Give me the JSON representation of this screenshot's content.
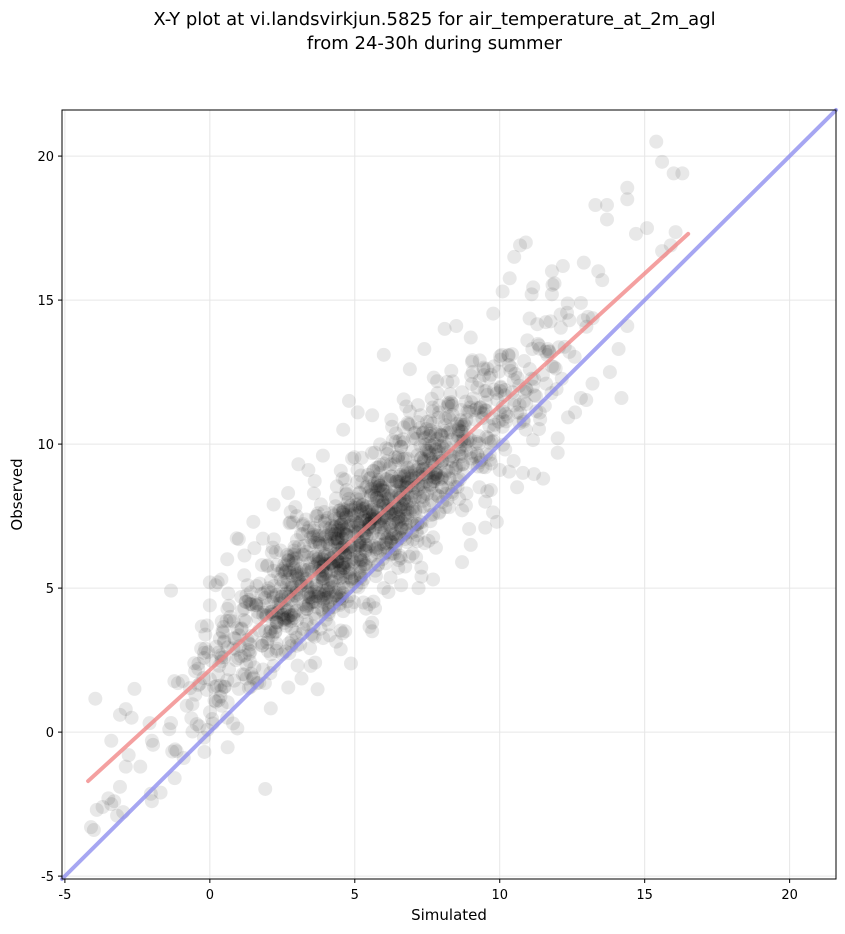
{
  "chart_data": {
    "type": "scatter",
    "title_line1": "X-Y plot at vi.landsvirkjun.5825 for air_temperature_at_2m_agl",
    "title_line2": "from 24-30h during summer",
    "xlabel": "Simulated",
    "ylabel": "Observed",
    "xlim": [
      -5.1,
      21.6
    ],
    "ylim": [
      -5.1,
      21.6
    ],
    "xticks": [
      -5,
      0,
      5,
      10,
      15,
      20
    ],
    "yticks": [
      -5,
      0,
      5,
      10,
      15,
      20
    ],
    "grid": true,
    "point_color": "#000000",
    "point_alpha": 0.09,
    "point_count": 1500,
    "fit_line": {
      "color": "#f08080",
      "x": [
        -4.2,
        16.5
      ],
      "y": [
        -1.7,
        17.3
      ]
    },
    "identity_line": {
      "color": "#8888ee",
      "x": [
        -5.1,
        21.6
      ],
      "y": [
        -5.1,
        21.6
      ]
    },
    "points": [
      [
        -4.1,
        -3.3
      ],
      [
        -4.0,
        -3.4
      ],
      [
        -3.9,
        -2.7
      ],
      [
        -3.7,
        -2.6
      ],
      [
        -3.5,
        -2.3
      ],
      [
        -3.4,
        -2.5
      ],
      [
        -3.3,
        -2.4
      ],
      [
        -3.2,
        -2.9
      ],
      [
        -3.1,
        -1.9
      ],
      [
        -3.4,
        -0.3
      ],
      [
        -3.1,
        0.6
      ],
      [
        -2.9,
        0.8
      ],
      [
        -2.7,
        0.5
      ],
      [
        -2.6,
        1.5
      ],
      [
        -2.8,
        -0.8
      ],
      [
        -2.9,
        -1.2
      ],
      [
        -2.4,
        -1.2
      ],
      [
        -2.0,
        -2.4
      ],
      [
        -1.7,
        -2.1
      ],
      [
        -2.0,
        -0.3
      ],
      [
        -1.4,
        0.1
      ],
      [
        -1.2,
        -0.6
      ],
      [
        -0.9,
        -0.9
      ],
      [
        -1.1,
        1.7
      ],
      [
        -0.5,
        1.3
      ],
      [
        -0.4,
        2.2
      ],
      [
        -0.3,
        2.9
      ],
      [
        -0.1,
        3.7
      ],
      [
        0.0,
        5.2
      ],
      [
        0.2,
        5.1
      ],
      [
        0.0,
        4.4
      ],
      [
        0.1,
        0.3
      ],
      [
        0.3,
        1.1
      ],
      [
        0.6,
        0.5
      ],
      [
        0.8,
        0.3
      ],
      [
        16.0,
        19.4
      ],
      [
        15.4,
        20.5
      ],
      [
        15.6,
        19.8
      ],
      [
        16.3,
        19.4
      ],
      [
        14.4,
        18.9
      ],
      [
        14.4,
        18.5
      ],
      [
        13.3,
        18.3
      ],
      [
        13.7,
        18.3
      ],
      [
        13.7,
        17.8
      ],
      [
        14.7,
        17.3
      ],
      [
        15.6,
        16.7
      ],
      [
        15.9,
        16.9
      ],
      [
        12.9,
        16.3
      ],
      [
        13.4,
        16.0
      ],
      [
        10.9,
        17.0
      ],
      [
        10.7,
        16.9
      ],
      [
        11.8,
        16.0
      ],
      [
        10.5,
        16.5
      ],
      [
        14.4,
        14.1
      ],
      [
        14.1,
        13.3
      ],
      [
        13.2,
        12.1
      ],
      [
        13.8,
        12.5
      ],
      [
        12.4,
        13.2
      ],
      [
        14.2,
        11.6
      ],
      [
        12.6,
        11.1
      ],
      [
        12.0,
        10.2
      ],
      [
        12.0,
        9.7
      ],
      [
        11.5,
        8.8
      ],
      [
        10.9,
        10.5
      ],
      [
        5.6,
        3.8
      ],
      [
        5.6,
        3.5
      ],
      [
        5.7,
        4.3
      ],
      [
        6.6,
        5.1
      ],
      [
        7.2,
        5.0
      ],
      [
        7.3,
        5.4
      ],
      [
        7.7,
        5.3
      ],
      [
        8.7,
        5.9
      ],
      [
        9.0,
        6.5
      ],
      [
        9.5,
        7.1
      ],
      [
        9.9,
        7.3
      ],
      [
        8.5,
        14.1
      ],
      [
        9.0,
        13.7
      ],
      [
        8.1,
        14.0
      ],
      [
        6.0,
        13.1
      ],
      [
        4.8,
        11.5
      ],
      [
        5.1,
        11.1
      ],
      [
        5.6,
        11.0
      ],
      [
        2.2,
        7.9
      ],
      [
        1.5,
        7.3
      ],
      [
        1.0,
        6.7
      ],
      [
        0.6,
        6.0
      ],
      [
        0.4,
        5.3
      ],
      [
        2.7,
        8.3
      ],
      [
        3.4,
        9.1
      ],
      [
        3.9,
        9.6
      ],
      [
        4.6,
        10.5
      ],
      [
        6.9,
        12.6
      ],
      [
        7.4,
        13.3
      ],
      [
        10.1,
        15.3
      ],
      [
        11.1,
        15.2
      ],
      [
        11.8,
        15.2
      ],
      [
        12.1,
        14.5
      ],
      [
        12.8,
        14.9
      ],
      [
        12.4,
        14.3
      ],
      [
        11.7,
        13.2
      ],
      [
        11.8,
        12.7
      ],
      [
        12.8,
        11.6
      ],
      [
        10.8,
        9.0
      ],
      [
        10.6,
        8.5
      ],
      [
        9.5,
        8.0
      ],
      [
        8.7,
        7.7
      ],
      [
        7.8,
        6.4
      ],
      [
        7.0,
        6.2
      ],
      [
        6.5,
        5.7
      ],
      [
        6.0,
        5.0
      ],
      [
        5.3,
        4.5
      ],
      [
        4.6,
        4.2
      ],
      [
        4.0,
        3.9
      ],
      [
        3.5,
        3.4
      ],
      [
        3.0,
        3.0
      ],
      [
        2.5,
        2.7
      ],
      [
        2.2,
        2.3
      ],
      [
        1.9,
        1.7
      ],
      [
        1.5,
        1.9
      ],
      [
        1.0,
        1.5
      ],
      [
        1.2,
        2.0
      ],
      [
        0.6,
        1.8
      ],
      [
        0.9,
        2.5
      ],
      [
        0.5,
        2.6
      ],
      [
        1.3,
        3.2
      ],
      [
        1.8,
        3.0
      ],
      [
        2.3,
        3.8
      ],
      [
        1.1,
        3.6
      ],
      [
        0.7,
        4.0
      ],
      [
        1.6,
        4.4
      ],
      [
        2.0,
        4.9
      ],
      [
        2.8,
        4.6
      ],
      [
        3.3,
        5.2
      ],
      [
        2.5,
        5.6
      ],
      [
        1.8,
        5.8
      ],
      [
        1.3,
        5.1
      ],
      [
        2.9,
        6.3
      ],
      [
        3.7,
        6.0
      ],
      [
        4.1,
        5.1
      ],
      [
        4.4,
        6.6
      ],
      [
        3.6,
        7.0
      ],
      [
        3.0,
        7.5
      ],
      [
        4.2,
        7.6
      ],
      [
        4.8,
        8.1
      ],
      [
        5.5,
        8.8
      ],
      [
        6.1,
        9.4
      ],
      [
        6.6,
        9.9
      ],
      [
        7.1,
        10.4
      ],
      [
        7.6,
        10.8
      ],
      [
        8.2,
        11.3
      ],
      [
        8.7,
        11.8
      ],
      [
        9.3,
        12.2
      ],
      [
        9.8,
        12.7
      ],
      [
        10.3,
        13.1
      ],
      [
        9.4,
        10.9
      ],
      [
        8.9,
        10.2
      ],
      [
        8.3,
        9.6
      ],
      [
        7.8,
        9.0
      ],
      [
        7.2,
        8.6
      ],
      [
        6.7,
        8.1
      ],
      [
        6.2,
        7.6
      ],
      [
        5.7,
        7.1
      ],
      [
        5.2,
        6.6
      ],
      [
        4.9,
        6.0
      ],
      [
        5.4,
        6.4
      ],
      [
        6.0,
        6.9
      ],
      [
        6.5,
        7.3
      ],
      [
        7.0,
        7.8
      ],
      [
        7.4,
        8.3
      ],
      [
        8.0,
        8.8
      ],
      [
        8.5,
        9.2
      ],
      [
        9.0,
        9.7
      ],
      [
        9.6,
        10.2
      ],
      [
        10.1,
        10.6
      ],
      [
        10.6,
        11.1
      ],
      [
        11.2,
        11.7
      ],
      [
        11.6,
        12.1
      ],
      [
        10.0,
        9.1
      ],
      [
        9.3,
        8.5
      ],
      [
        8.6,
        8.1
      ],
      [
        7.9,
        7.6
      ],
      [
        7.3,
        7.1
      ],
      [
        6.8,
        6.6
      ],
      [
        6.3,
        6.2
      ],
      [
        5.8,
        5.8
      ],
      [
        5.0,
        5.3
      ],
      [
        4.5,
        5.6
      ],
      [
        3.9,
        4.9
      ],
      [
        3.4,
        4.4
      ],
      [
        2.7,
        4.0
      ],
      [
        2.1,
        3.5
      ],
      [
        1.4,
        2.8
      ]
    ]
  }
}
